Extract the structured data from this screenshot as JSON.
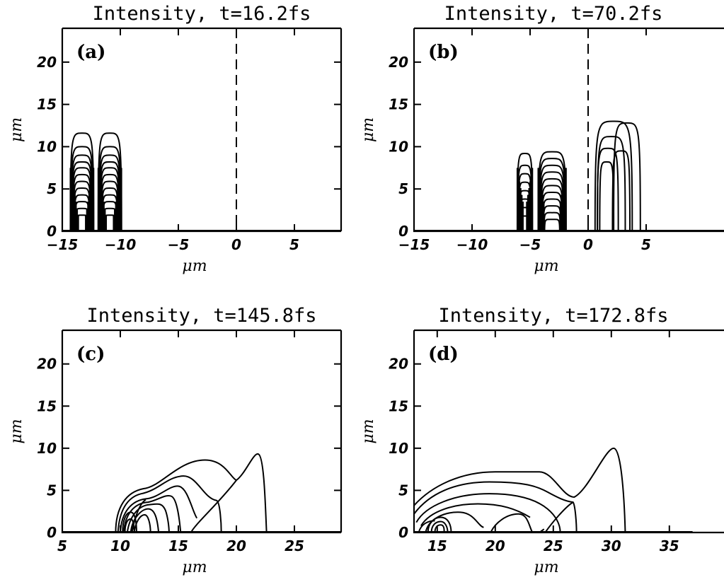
{
  "chart_data": [
    {
      "type": "contour",
      "panel_label": "(a)",
      "title": "Intensity, t=16.2fs",
      "xlabel": "μm",
      "ylabel": "μm",
      "xlim": [
        -15,
        9
      ],
      "ylim": [
        0,
        24
      ],
      "xticks": [
        -15,
        -10,
        -5,
        0,
        5
      ],
      "yticks": [
        0,
        5,
        10,
        15,
        20
      ],
      "dashed_line_x": 0,
      "lobes": [
        {
          "x_left": -14.3,
          "x_right": -12.3,
          "base_levels": 8,
          "heights": [
            11.6,
            10.0,
            9.0,
            8.2,
            7.5,
            6.7,
            5.9,
            5.1,
            4.3,
            3.5,
            2.7,
            1.9
          ]
        },
        {
          "x_left": -11.9,
          "x_right": -9.9,
          "base_levels": 8,
          "heights": [
            11.6,
            10.0,
            9.0,
            8.2,
            7.5,
            6.7,
            5.9,
            5.1,
            4.3,
            3.5,
            2.7,
            1.9
          ]
        }
      ]
    },
    {
      "type": "contour",
      "panel_label": "(b)",
      "title": "Intensity, t=70.2fs",
      "xlabel": "μm",
      "ylabel": "μm",
      "xlim": [
        -15,
        9
      ],
      "ylim": [
        0,
        24
      ],
      "xticks": [
        -15,
        -10,
        -5,
        0,
        5
      ],
      "yticks": [
        0,
        5,
        10,
        15,
        20
      ],
      "dashed_line_x": 0,
      "lobes": [
        {
          "x_left": -6.1,
          "x_right": -4.8,
          "base_levels": 6,
          "heights": [
            9.2,
            7.8,
            6.8,
            5.8,
            4.8,
            3.8,
            2.8,
            1.8
          ]
        },
        {
          "x_left": -4.3,
          "x_right": -1.9,
          "base_levels": 6,
          "heights": [
            9.4,
            8.6,
            7.8,
            7.0,
            6.2,
            5.4,
            4.6,
            3.8,
            3.0,
            2.2,
            1.4
          ]
        }
      ],
      "arcs": [
        {
          "x_left": 0.6,
          "x_right": 3.8,
          "height": 13.0
        },
        {
          "x_left": 0.8,
          "x_right": 3.2,
          "height": 11.2
        },
        {
          "x_left": 0.8,
          "x_right": 2.6,
          "height": 9.8
        },
        {
          "x_left": 1.0,
          "x_right": 2.2,
          "height": 8.2
        },
        {
          "x_left": 2.2,
          "x_right": 4.5,
          "height": 12.8
        },
        {
          "x_left": 2.1,
          "x_right": 3.6,
          "height": 9.5
        }
      ]
    },
    {
      "type": "contour",
      "panel_label": "(c)",
      "title": "Intensity, t=145.8fs",
      "xlabel": "μm",
      "ylabel": "μm",
      "xlim": [
        5,
        29
      ],
      "ylim": [
        0,
        24
      ],
      "xticks": [
        5,
        10,
        15,
        20,
        25
      ],
      "yticks": [
        0,
        5,
        10,
        15,
        20
      ]
    },
    {
      "type": "contour",
      "panel_label": "(d)",
      "title": "Intensity, t=172.8fs",
      "xlabel": "μm",
      "ylabel": "μm",
      "xlim": [
        13,
        37
      ],
      "ylim": [
        0,
        24
      ],
      "xticks": [
        15,
        20,
        25,
        30,
        35
      ],
      "yticks": [
        0,
        5,
        10,
        15,
        20
      ]
    }
  ]
}
